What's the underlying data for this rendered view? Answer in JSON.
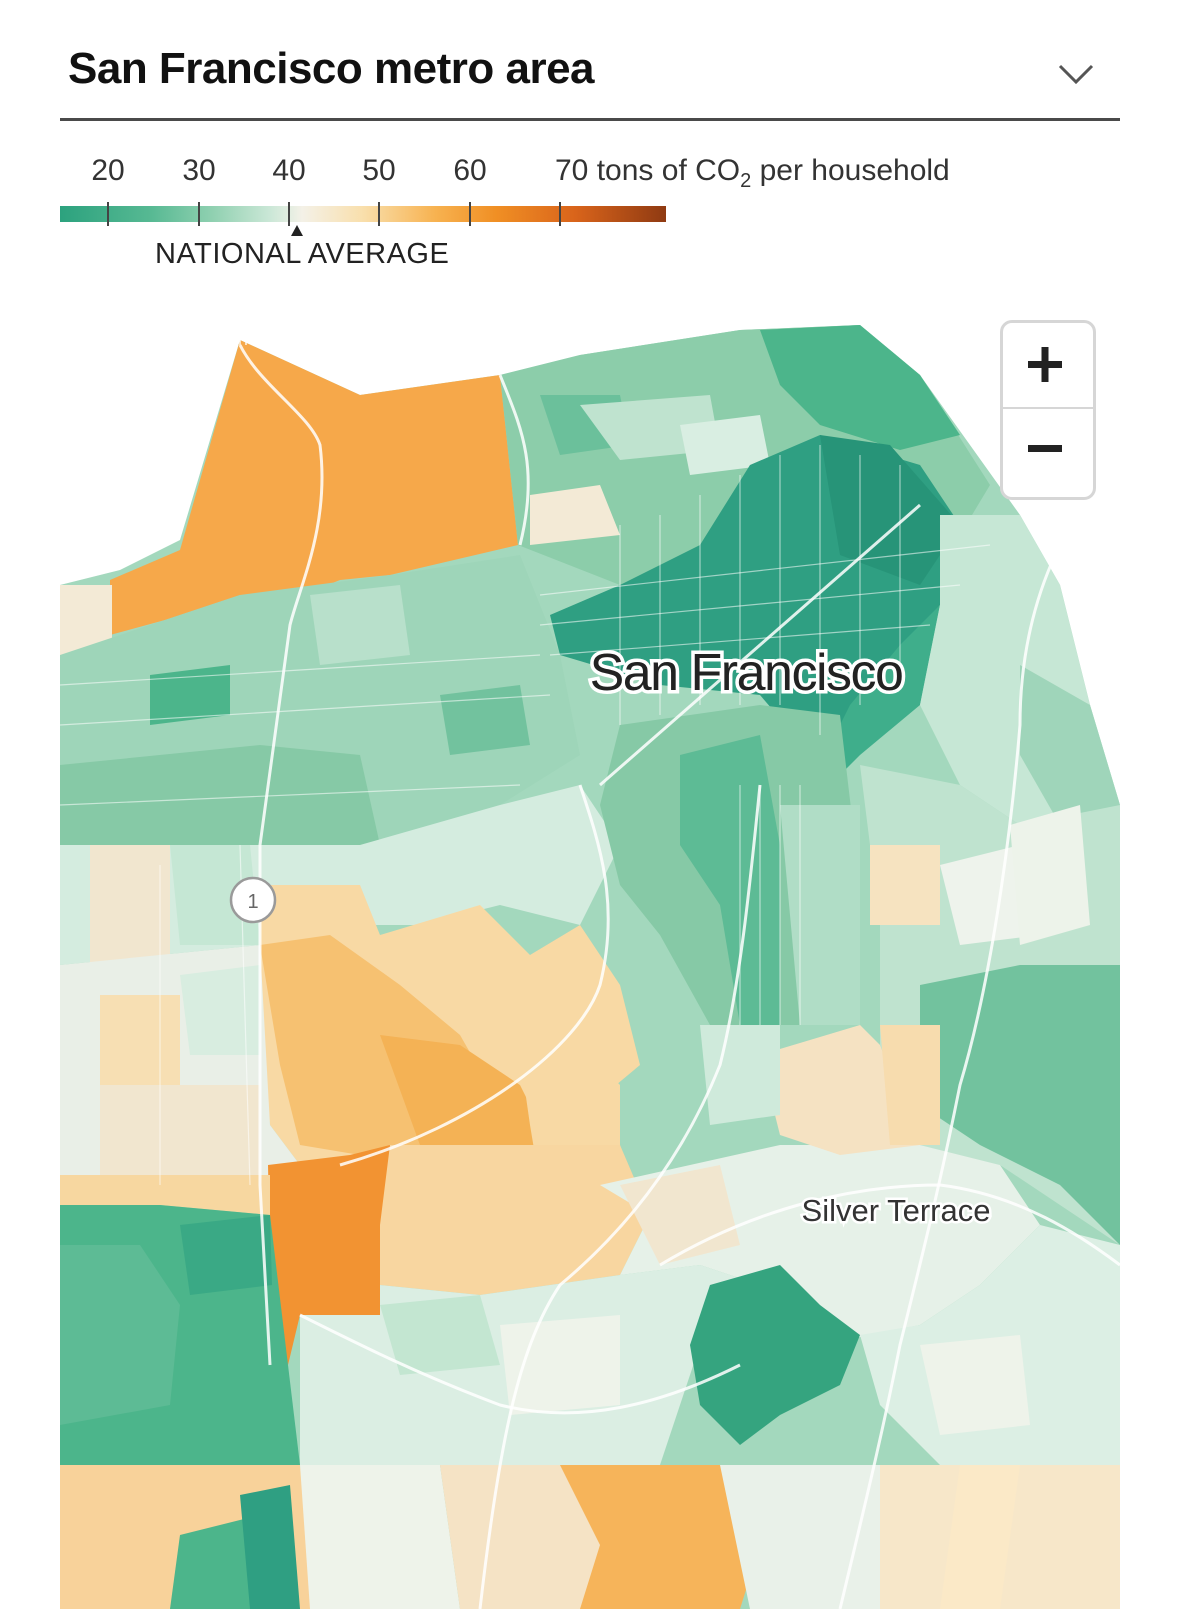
{
  "header": {
    "title": "San Francisco metro area",
    "dropdown_icon": "chevron-down-icon"
  },
  "legend": {
    "ticks": [
      "20",
      "30",
      "40",
      "50",
      "60",
      "70"
    ],
    "unit_prefix": "tons of CO",
    "unit_sub": "2",
    "unit_suffix": " per household",
    "national_average_label": "NATIONAL AVERAGE",
    "national_average_value": 41,
    "colors": {
      "low": "#2ca27e",
      "mid": "#f4f1e7",
      "high": "#8f3a12"
    }
  },
  "map": {
    "city_label": "San Francisco",
    "neighborhood_label": "Silver Terrace",
    "highway_shield": "1"
  },
  "zoom": {
    "zoom_in_icon": "plus-icon",
    "zoom_out_icon": "minus-icon"
  }
}
